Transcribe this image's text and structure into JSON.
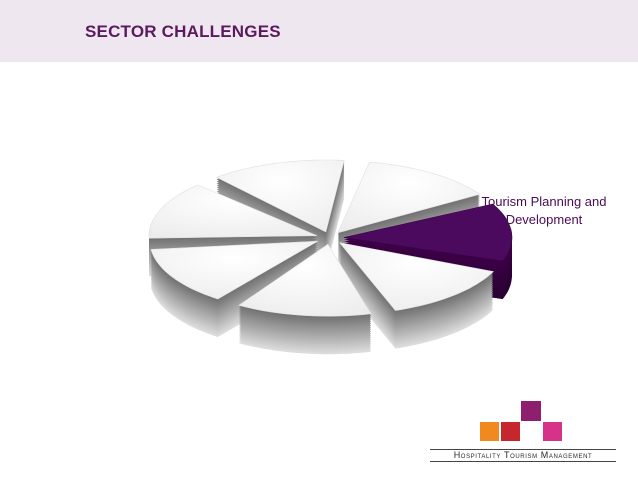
{
  "header": {
    "title": "SECTOR CHALLENGES"
  },
  "diagram": {
    "highlighted_segment": {
      "label": "Tourism Planning and Development"
    }
  },
  "logo": {
    "text": "Hospitality Tourism Management"
  }
}
